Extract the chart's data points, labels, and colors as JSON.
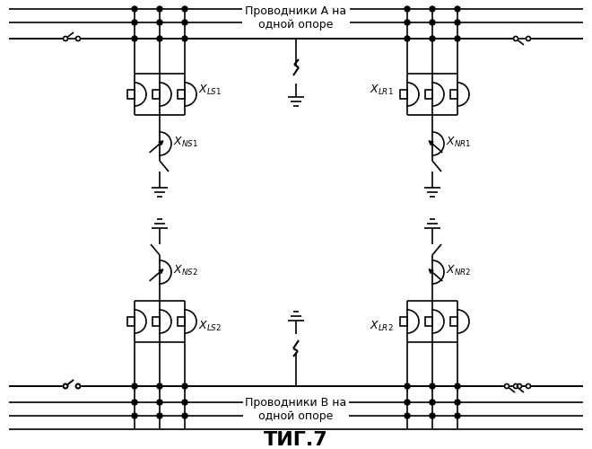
{
  "title": "ΤИГ.7",
  "label_A": "Проводники А на\nодной опоре",
  "label_B": "Проводники В на\nодной опоре",
  "bg_color": "#ffffff",
  "line_color": "#000000",
  "fig_width": 6.6,
  "fig_height": 5.0,
  "dpi": 100
}
